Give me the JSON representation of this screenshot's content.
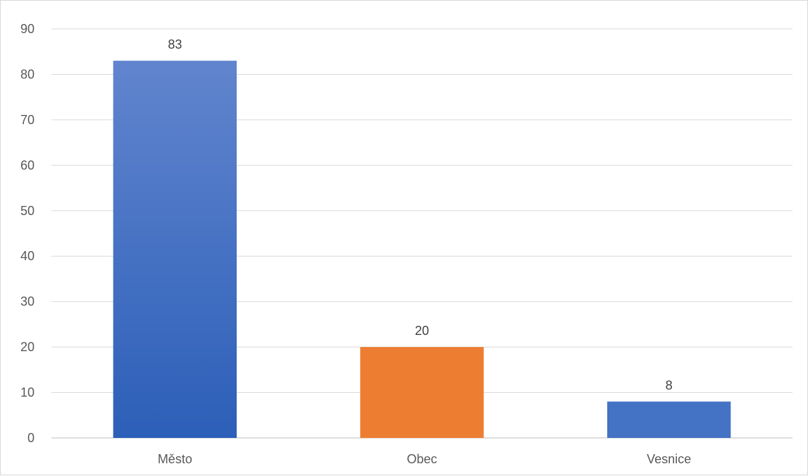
{
  "chart_data": {
    "type": "bar",
    "title": "",
    "xlabel": "",
    "ylabel": "",
    "categories": [
      "Město",
      "Obec",
      "Vesnice"
    ],
    "values": [
      83,
      20,
      8
    ],
    "data_labels": [
      "83",
      "20",
      "8"
    ],
    "ylim": [
      0,
      90
    ],
    "yticks": [
      0,
      10,
      20,
      30,
      40,
      50,
      60,
      70,
      80,
      90
    ],
    "ytick_labels": [
      "0",
      "10",
      "20",
      "30",
      "40",
      "50",
      "60",
      "70",
      "80",
      "90"
    ],
    "grid": true,
    "legend": "none",
    "bar_colors": [
      "#4472C4",
      "#ED7D31",
      "#4472C4"
    ],
    "bar_gradient": [
      true,
      false,
      false
    ]
  }
}
